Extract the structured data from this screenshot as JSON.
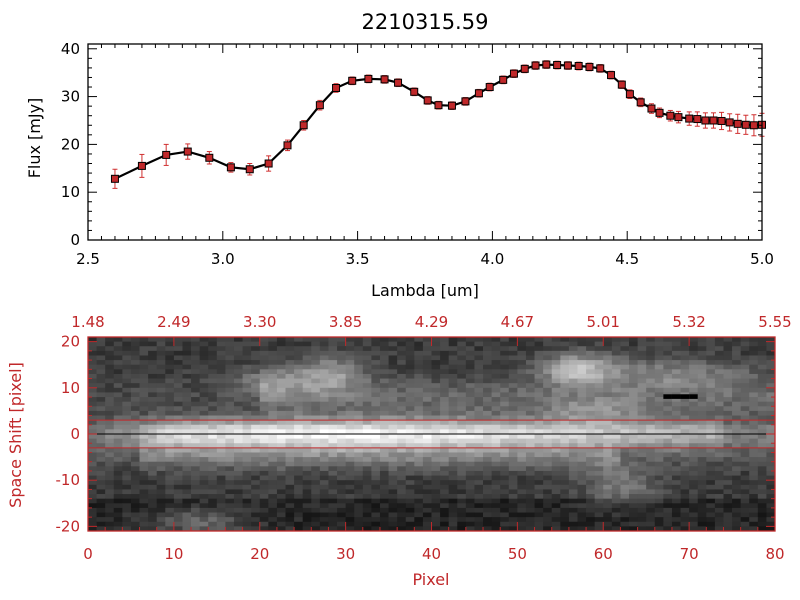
{
  "chart_data": [
    {
      "type": "line",
      "title": "2210315.59",
      "xlabel": "Lambda [um]",
      "ylabel": "Flux [mJy]",
      "xlim": [
        2.5,
        5.0
      ],
      "ylim": [
        0,
        41
      ],
      "x_ticks": [
        "2.5",
        "3.0",
        "3.5",
        "4.0",
        "4.5",
        "5.0"
      ],
      "y_ticks": [
        "0",
        "10",
        "20",
        "30",
        "40"
      ],
      "colors": {
        "line": "#000000",
        "marker": "#c0282a",
        "errorbar": "#d03030"
      },
      "x": [
        2.6,
        2.7,
        2.79,
        2.87,
        2.95,
        3.03,
        3.1,
        3.17,
        3.24,
        3.3,
        3.36,
        3.42,
        3.48,
        3.54,
        3.6,
        3.65,
        3.71,
        3.76,
        3.8,
        3.85,
        3.9,
        3.95,
        3.99,
        4.04,
        4.08,
        4.12,
        4.16,
        4.2,
        4.24,
        4.28,
        4.32,
        4.36,
        4.4,
        4.44,
        4.48,
        4.51,
        4.55,
        4.59,
        4.62,
        4.66,
        4.69,
        4.73,
        4.76,
        4.79,
        4.82,
        4.85,
        4.88,
        4.91,
        4.94,
        4.97,
        5.0
      ],
      "y": [
        12.8,
        15.5,
        17.8,
        18.5,
        17.2,
        15.2,
        14.8,
        16.0,
        19.8,
        24.0,
        28.2,
        31.8,
        33.3,
        33.7,
        33.6,
        32.9,
        31.0,
        29.2,
        28.2,
        28.1,
        29.0,
        30.7,
        32.0,
        33.5,
        34.8,
        35.8,
        36.5,
        36.7,
        36.6,
        36.5,
        36.4,
        36.2,
        35.9,
        34.5,
        32.5,
        30.5,
        28.8,
        27.5,
        26.6,
        26.0,
        25.7,
        25.4,
        25.3,
        25.0,
        25.0,
        24.9,
        24.6,
        24.3,
        24.1,
        24.0,
        24.1
      ],
      "yerr": [
        2.0,
        2.4,
        2.2,
        1.6,
        1.3,
        1.0,
        1.2,
        1.6,
        1.1,
        1.0,
        1.0,
        0.9,
        0.8,
        0.8,
        0.8,
        0.8,
        0.8,
        0.8,
        0.8,
        0.8,
        0.8,
        0.8,
        0.8,
        0.8,
        0.8,
        0.8,
        0.8,
        0.8,
        0.8,
        0.8,
        0.8,
        0.8,
        0.8,
        0.8,
        0.8,
        0.9,
        0.9,
        1.0,
        1.0,
        1.1,
        1.2,
        1.4,
        1.5,
        1.6,
        1.6,
        1.8,
        1.8,
        2.0,
        2.0,
        2.2,
        2.4
      ]
    },
    {
      "type": "heatmap",
      "xlabel": "Pixel",
      "ylabel": "Space Shift [pixel]",
      "top_axis_labels": [
        "1.48",
        "2.49",
        "3.30",
        "3.85",
        "4.29",
        "4.67",
        "5.01",
        "5.32",
        "5.55"
      ],
      "xlim": [
        0,
        80
      ],
      "ylim": [
        -21,
        21
      ],
      "x_ticks": [
        "0",
        "10",
        "20",
        "30",
        "40",
        "50",
        "60",
        "70",
        "80"
      ],
      "y_ticks": [
        "-20",
        "-10",
        "0",
        "10",
        "20"
      ],
      "colormap": "grayscale",
      "colors": {
        "axes": "#c0282a",
        "guides": "#c0282a",
        "centerline": "#000000"
      },
      "trace_center": 0,
      "trace_bounds": [
        -3,
        3
      ],
      "noise_seed": 7
    }
  ]
}
